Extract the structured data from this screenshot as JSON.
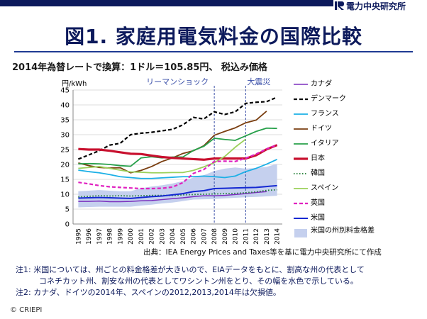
{
  "header": {
    "org": "電力中央研究所"
  },
  "title": "図1. 家庭用電気料金の国際比較",
  "subtitle": "2014年為替レートで換算：1ドル＝105.85円、 税込み価格",
  "chart_data": {
    "type": "line",
    "ylabel": "円/kWh",
    "ylim": [
      0,
      45
    ],
    "yticks": [
      0,
      5,
      10,
      15,
      20,
      25,
      30,
      35,
      40,
      45
    ],
    "x": [
      "1995",
      "1996",
      "1997",
      "1998",
      "1999",
      "2000",
      "2001",
      "2002",
      "2003",
      "2004",
      "2005",
      "2006",
      "2007",
      "2008",
      "2009",
      "2010",
      "2011",
      "2012",
      "2013",
      "2014"
    ],
    "annotations": [
      {
        "label": "リーマンショック",
        "x": "2008"
      },
      {
        "label": "大震災",
        "x": "2011"
      }
    ],
    "band": {
      "name": "米国の州別料金格差",
      "color": "#c5d0ee",
      "low": [
        5.6,
        5.7,
        5.8,
        5.8,
        5.8,
        5.8,
        6.2,
        6.5,
        6.9,
        7.2,
        7.7,
        8.2,
        8.3,
        8.4,
        8.6,
        8.8,
        9.0,
        9.1,
        9.3,
        9.5
      ],
      "high": [
        11.0,
        11.2,
        11.4,
        11.2,
        11.0,
        11.0,
        12.0,
        12.6,
        13.0,
        13.6,
        14.4,
        15.6,
        16.4,
        17.8,
        18.6,
        19.0,
        18.6,
        18.8,
        19.2,
        20.2
      ]
    },
    "series": [
      {
        "name": "カナダ",
        "color": "#7b2fbe",
        "width": 1.5,
        "dash": "",
        "values": [
          7.6,
          7.6,
          7.7,
          7.5,
          7.5,
          7.6,
          7.8,
          7.9,
          8.2,
          8.5,
          8.8,
          9.2,
          9.5,
          9.5,
          9.6,
          9.9,
          10.2,
          10.6,
          10.9,
          null
        ]
      },
      {
        "name": "デンマーク",
        "color": "#000000",
        "width": 2.2,
        "dash": "5,3",
        "values": [
          21.8,
          23.2,
          24.6,
          26.5,
          27.1,
          30.0,
          30.5,
          30.8,
          31.3,
          31.8,
          33.3,
          35.8,
          35.3,
          37.7,
          36.8,
          37.7,
          40.5,
          40.9,
          41.1,
          42.6
        ]
      },
      {
        "name": "フランス",
        "color": "#1cb0e6",
        "width": 1.8,
        "dash": "",
        "values": [
          18.1,
          17.6,
          17.2,
          16.6,
          15.9,
          15.6,
          15.3,
          15.3,
          15.5,
          15.7,
          15.9,
          15.9,
          16.1,
          15.9,
          15.6,
          16.1,
          17.6,
          18.7,
          20.1,
          21.7
        ]
      },
      {
        "name": "ドイツ",
        "color": "#7a3e10",
        "width": 1.8,
        "dash": "",
        "values": [
          20.5,
          19.6,
          19.0,
          18.8,
          18.9,
          17.2,
          18.0,
          19.3,
          21.0,
          22.2,
          23.7,
          24.6,
          26.3,
          29.8,
          31.1,
          32.3,
          34.0,
          34.9,
          37.9,
          null
        ]
      },
      {
        "name": "イタリア",
        "color": "#27a04a",
        "width": 1.8,
        "dash": "",
        "values": [
          20.2,
          20.3,
          20.2,
          20.0,
          19.6,
          19.4,
          22.2,
          22.6,
          22.2,
          22.5,
          22.5,
          24.7,
          26.1,
          28.8,
          28.4,
          28.1,
          29.6,
          31.1,
          32.2,
          32.1
        ]
      },
      {
        "name": "日本",
        "color": "#c8102e",
        "width": 3.2,
        "dash": "",
        "values": [
          25.2,
          25.0,
          25.0,
          24.6,
          24.1,
          23.6,
          23.5,
          23.0,
          22.5,
          22.2,
          22.0,
          21.8,
          21.6,
          22.0,
          22.0,
          22.0,
          22.0,
          23.1,
          25.1,
          26.5
        ]
      },
      {
        "name": "韓国",
        "color": "#1a7a2e",
        "width": 1.8,
        "dash": "1.5,2.5",
        "values": [
          9.1,
          9.3,
          9.5,
          9.4,
          9.5,
          9.4,
          9.5,
          9.6,
          9.6,
          9.6,
          9.8,
          9.9,
          10.0,
          10.1,
          10.2,
          10.3,
          10.5,
          10.8,
          11.3,
          11.5
        ]
      },
      {
        "name": "スペイン",
        "color": "#9bd05a",
        "width": 1.8,
        "dash": "",
        "values": [
          18.7,
          19.0,
          19.3,
          18.7,
          18.1,
          17.5,
          17.4,
          17.2,
          17.2,
          17.3,
          17.3,
          18.0,
          19.2,
          20.6,
          22.7,
          25.8,
          28.5,
          null,
          null,
          null
        ]
      },
      {
        "name": "英国",
        "color": "#e020c0",
        "width": 2.2,
        "dash": "5,3",
        "values": [
          14.0,
          13.5,
          12.9,
          12.5,
          12.3,
          12.1,
          11.9,
          11.9,
          12.0,
          12.4,
          13.9,
          17.0,
          18.3,
          21.0,
          21.1,
          21.0,
          22.1,
          23.5,
          25.2,
          26.6
        ]
      },
      {
        "name": "米国",
        "color": "#1428d2",
        "width": 2.0,
        "dash": "",
        "values": [
          8.7,
          8.8,
          8.9,
          8.8,
          8.7,
          8.6,
          8.9,
          9.2,
          9.4,
          9.8,
          10.2,
          10.9,
          11.2,
          11.9,
          12.0,
          12.1,
          12.2,
          12.3,
          12.6,
          12.9
        ]
      }
    ]
  },
  "source": "出典：IEA Energy Prices and Taxes等を基に電力中央研究所にて作成",
  "notes": [
    "注1: 米国については、州ごとの料金格差が大きいので、EIAデータをもとに、割高な州の代表として",
    "　　　コネチカット州、割安な州の代表としてワシントン州をとり、その幅を水色で示している。",
    "注2: カナダ、ドイツの2014年、スペインの2012,2013,2014年は欠損値。"
  ],
  "copyright": "© CRIEPI"
}
